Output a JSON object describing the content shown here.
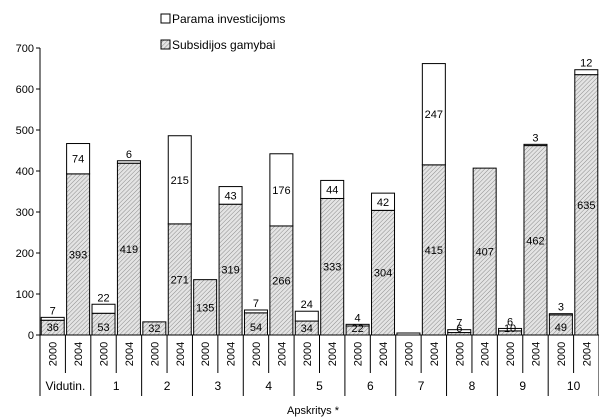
{
  "chart_data": {
    "type": "bar",
    "stacked": true,
    "title": "",
    "xlabel": "Apskritys *",
    "ylabel": "",
    "ylim": [
      0,
      700
    ],
    "yticks": [
      0,
      100,
      200,
      300,
      400,
      500,
      600,
      700
    ],
    "grid": false,
    "legend": {
      "placement": "top",
      "entries": [
        {
          "name": "Parama investicijoms",
          "pattern": "white"
        },
        {
          "name": "Subsidijos gamybai",
          "pattern": "hatched"
        }
      ]
    },
    "groups": [
      {
        "label": "Vidutin.",
        "bars": [
          {
            "year": "2000",
            "subsidijos": 36,
            "parama": 7
          },
          {
            "year": "2004",
            "subsidijos": 393,
            "parama": 74
          }
        ]
      },
      {
        "label": "1",
        "bars": [
          {
            "year": "2000",
            "subsidijos": 53,
            "parama": 22
          },
          {
            "year": "2004",
            "subsidijos": 419,
            "parama": 6
          }
        ]
      },
      {
        "label": "2",
        "bars": [
          {
            "year": "2000",
            "subsidijos": 32,
            "parama": null
          },
          {
            "year": "2004",
            "subsidijos": 271,
            "parama": 215
          }
        ]
      },
      {
        "label": "3",
        "bars": [
          {
            "year": "2000",
            "subsidijos": 135,
            "parama": null
          },
          {
            "year": "2004",
            "subsidijos": 319,
            "parama": 43
          }
        ]
      },
      {
        "label": "4",
        "bars": [
          {
            "year": "2000",
            "subsidijos": 54,
            "parama": 7
          },
          {
            "year": "2004",
            "subsidijos": 266,
            "parama": 176
          }
        ]
      },
      {
        "label": "5",
        "bars": [
          {
            "year": "2000",
            "subsidijos": 34,
            "parama": 24
          },
          {
            "year": "2004",
            "subsidijos": 333,
            "parama": 44
          }
        ]
      },
      {
        "label": "6",
        "bars": [
          {
            "year": "2000",
            "subsidijos": 22,
            "parama": 4
          },
          {
            "year": "2004",
            "subsidijos": 304,
            "parama": 42
          }
        ]
      },
      {
        "label": "7",
        "bars": [
          {
            "year": "2000",
            "subsidijos": null,
            "parama": null
          },
          {
            "year": "2004",
            "subsidijos": 415,
            "parama": 247
          }
        ]
      },
      {
        "label": "8",
        "bars": [
          {
            "year": "2000",
            "subsidijos": 6,
            "parama": 7
          },
          {
            "year": "2004",
            "subsidijos": 407,
            "parama": null
          }
        ]
      },
      {
        "label": "9",
        "bars": [
          {
            "year": "2000",
            "subsidijos": 10,
            "parama": 6
          },
          {
            "year": "2004",
            "subsidijos": 462,
            "parama": 3
          }
        ]
      },
      {
        "label": "10",
        "bars": [
          {
            "year": "2000",
            "subsidijos": 49,
            "parama": 3
          },
          {
            "year": "2004",
            "subsidijos": 635,
            "parama": 12
          }
        ]
      }
    ]
  }
}
